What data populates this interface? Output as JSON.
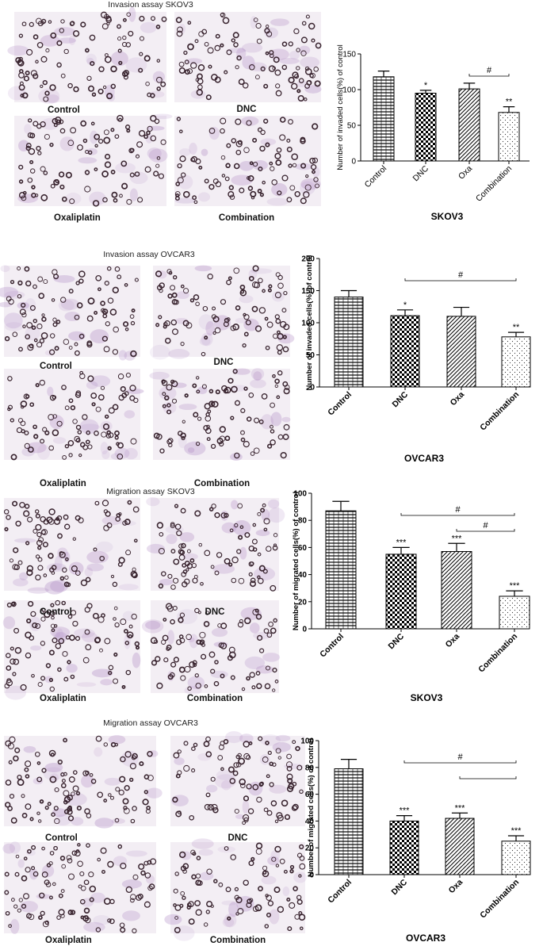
{
  "colors": {
    "micro_bg": "#f3eef4",
    "cell_stain": "#3a2530",
    "purple_stain": "#b38fc6",
    "bar_stroke": "#000000"
  },
  "panels": [
    {
      "title": "Invasion assay SKOV3",
      "micro_labels": [
        "Control",
        "DNC",
        "Oxaliplatin",
        "Combination"
      ]
    },
    {
      "title": "Invasion assay OVCAR3",
      "micro_labels": [
        "Control",
        "DNC",
        "Oxaliplatin",
        "Combination"
      ]
    },
    {
      "title": "Migration assay SKOV3",
      "micro_labels": [
        "Control",
        "DNC",
        "Oxaliplatin",
        "Combination"
      ]
    },
    {
      "title": "Migration assay OVCAR3",
      "micro_labels": [
        "Control",
        "DNC",
        "Oxaliplatin",
        "Combination"
      ]
    }
  ],
  "chart_data": [
    {
      "type": "bar",
      "categories": [
        "Control",
        "DNC",
        "Oxa",
        "Combination"
      ],
      "values": [
        118,
        95,
        101,
        68
      ],
      "errors": [
        8,
        4,
        8,
        8
      ],
      "ylabel": "Number of invaded cells(%) of control",
      "xlabel": "SKOV3",
      "ylim": [
        0,
        150
      ],
      "yticks": [
        0,
        50,
        100,
        150
      ],
      "sig": [
        "",
        "*",
        "",
        "**"
      ],
      "brackets": [
        {
          "from": 2,
          "to": 3,
          "label": "#"
        }
      ],
      "patterns": [
        "hlines",
        "check",
        "diag",
        "dots"
      ]
    },
    {
      "type": "bar",
      "categories": [
        "Control",
        "DNC",
        "Oxa",
        "Combination"
      ],
      "values": [
        140,
        111,
        110,
        78
      ],
      "errors": [
        10,
        9,
        14,
        7
      ],
      "ylabel": "Number of invaded cells(%) of control",
      "xlabel": "OVCAR3",
      "ylim": [
        0,
        200
      ],
      "yticks": [
        0,
        50,
        100,
        150,
        200
      ],
      "sig": [
        "",
        "*",
        "",
        "**"
      ],
      "brackets": [
        {
          "from": 1,
          "to": 3,
          "label": "#"
        }
      ],
      "patterns": [
        "hlines",
        "check",
        "diag",
        "dots"
      ]
    },
    {
      "type": "bar",
      "categories": [
        "Control",
        "DNC",
        "Oxa",
        "Combination"
      ],
      "values": [
        87,
        55,
        57,
        24
      ],
      "errors": [
        7,
        5,
        6,
        4
      ],
      "ylabel": "Number of migrated cells(%) of control",
      "xlabel": "SKOV3",
      "ylim": [
        0,
        100
      ],
      "yticks": [
        0,
        20,
        40,
        60,
        80,
        100
      ],
      "sig": [
        "",
        "***",
        "***",
        "***"
      ],
      "brackets": [
        {
          "from": 1,
          "to": 3,
          "label": "#"
        },
        {
          "from": 2,
          "to": 3,
          "label": "#"
        }
      ],
      "patterns": [
        "hlines",
        "check",
        "diag",
        "dots"
      ]
    },
    {
      "type": "bar",
      "categories": [
        "Control",
        "DNC",
        "Oxa",
        "Combination"
      ],
      "values": [
        79,
        40,
        42,
        25
      ],
      "errors": [
        7,
        4,
        4,
        4
      ],
      "ylabel": "Number of migrated cells(%) of control",
      "xlabel": "OVCAR3",
      "ylim": [
        0,
        100
      ],
      "yticks": [
        0,
        20,
        40,
        60,
        80,
        100
      ],
      "sig": [
        "",
        "***",
        "***",
        "***"
      ],
      "brackets": [
        {
          "from": 1,
          "to": 3,
          "label": "#"
        },
        {
          "from": 2,
          "to": 3,
          "label": ""
        }
      ],
      "patterns": [
        "hlines",
        "check",
        "diag",
        "dots"
      ]
    }
  ]
}
